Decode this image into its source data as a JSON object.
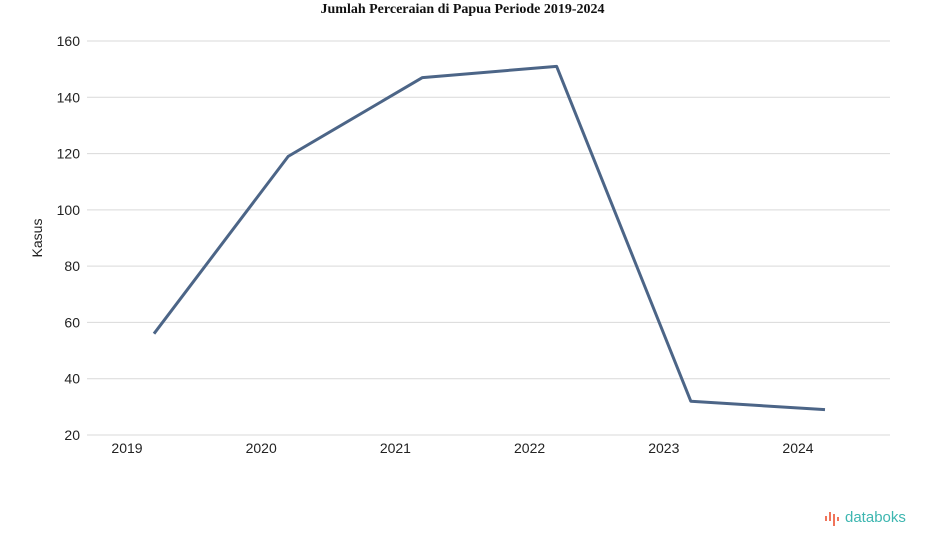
{
  "colors": {
    "series": "#4c6587",
    "grid": "#d9d9d9",
    "brand": "#3db6b0",
    "brand_accent": "#f0745a"
  },
  "brand": {
    "name": "databoks",
    "icon": "databoks-logo-icon"
  },
  "chart_data": {
    "type": "line",
    "title": "Jumlah Perceraian di Papua Periode 2019-2024",
    "xlabel": "",
    "ylabel": "Kasus",
    "categories": [
      "2019",
      "2020",
      "2021",
      "2022",
      "2023",
      "2024"
    ],
    "series": [
      {
        "values": [
          56,
          119,
          147,
          151,
          32,
          29
        ]
      }
    ],
    "ylim": [
      20,
      160
    ],
    "yticks": [
      20,
      40,
      60,
      80,
      100,
      120,
      140,
      160
    ],
    "grid": true,
    "legend": "none"
  }
}
